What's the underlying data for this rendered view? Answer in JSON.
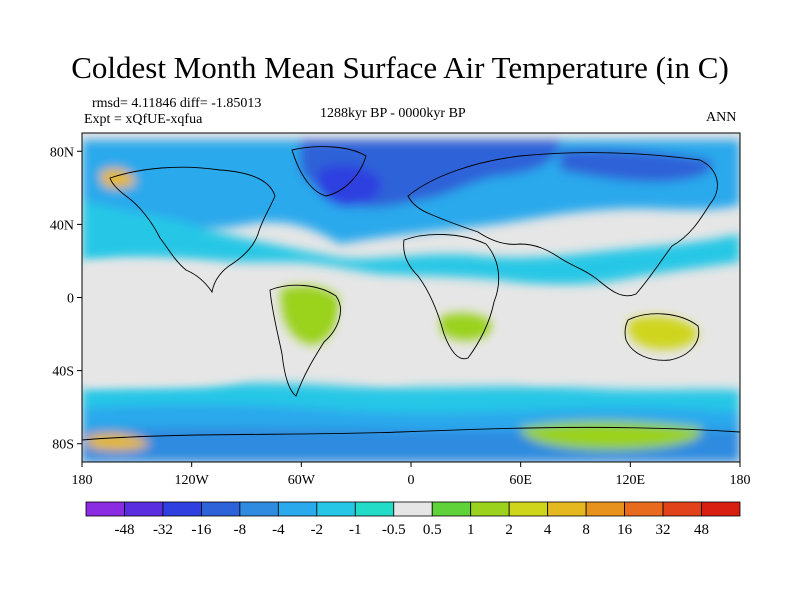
{
  "header": {
    "title": "Coldest Month Mean Surface Air Temperature (in C)",
    "stats": "rmsd= 4.11846 diff= -1.85013",
    "experiment": "Expt = xQfUE-xqfua",
    "period": "1288kyr BP - 0000kyr BP",
    "season": "ANN"
  },
  "map": {
    "projection": "cylindrical equidistant",
    "lon_range": [
      -180,
      180
    ],
    "lat_range": [
      -90,
      90
    ],
    "lat_labels": [
      "80N",
      "40N",
      "0",
      "40S",
      "80S"
    ],
    "lon_labels": [
      "180",
      "120W",
      "60W",
      "0",
      "60E",
      "120E",
      "180"
    ],
    "background_color": "#e6e6e6"
  },
  "colorbar": {
    "boundary_labels": [
      "-48",
      "-32",
      "-16",
      "-8",
      "-4",
      "-2",
      "-1",
      "-0.5",
      "0.5",
      "1",
      "2",
      "4",
      "8",
      "16",
      "32",
      "48"
    ],
    "colors": [
      "#8b2be2",
      "#5a2ee0",
      "#2f3fe0",
      "#2e62d8",
      "#2f8be0",
      "#2aa9ec",
      "#26c7e6",
      "#22dcc8",
      "#e6e6e6",
      "#5fd23a",
      "#9ad21e",
      "#cfd51a",
      "#e6b820",
      "#e8921e",
      "#e86a1c",
      "#e2421a",
      "#d81e10"
    ]
  }
}
